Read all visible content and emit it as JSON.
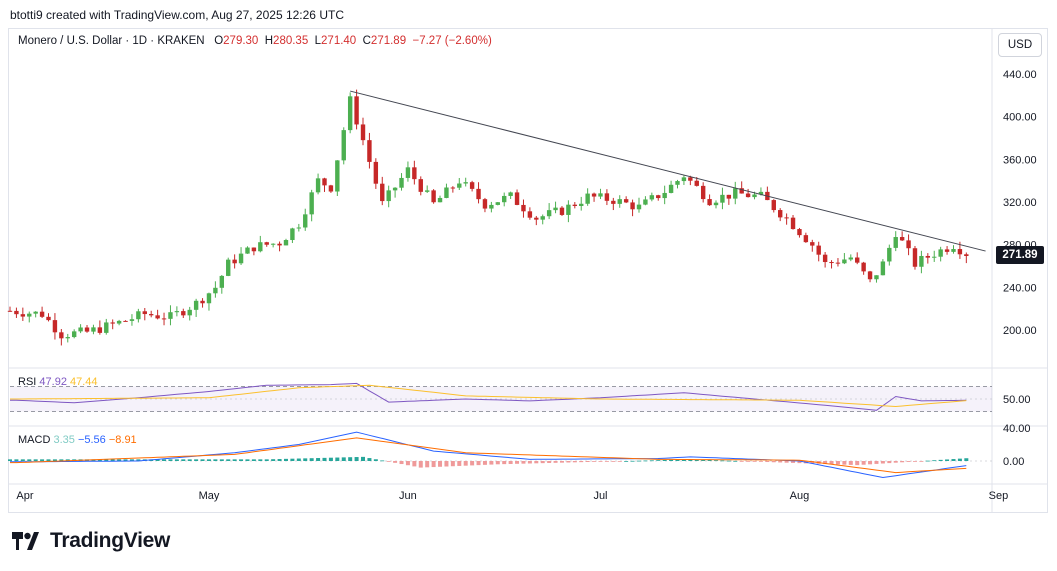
{
  "header": {
    "attribution": "btotti9 created with TradingView.com, Aug 27, 2025 12:26 UTC"
  },
  "legend": {
    "symbol": "Monero / U.S. Dollar · 1D · KRAKEN",
    "o_label": "O",
    "o": "279.30",
    "h_label": "H",
    "h": "280.35",
    "l_label": "L",
    "l": "271.40",
    "c_label": "C",
    "c": "271.89",
    "change": "−7.27 (−2.60%)"
  },
  "currency": "USD",
  "last_price": "271.89",
  "rsi": {
    "label": "RSI",
    "value": "47.92",
    "ma": "47.44"
  },
  "macd": {
    "label": "MACD",
    "hist": "3.35",
    "macd": "−5.56",
    "signal": "−8.91"
  },
  "brand": {
    "name": "TradingView",
    "icon": "tradingview-logo-icon"
  },
  "colors": {
    "up": "#22ab94",
    "up_candle": "#26a69a",
    "green_candle": "#4caf50",
    "down": "#d32f2f",
    "rsi_line": "#7e57c2",
    "rsi_ma": "#fbc02d",
    "macd_line": "#2962ff",
    "signal_line": "#ff6d00"
  },
  "chart_data": [
    {
      "type": "candlestick",
      "title": "Monero / U.S. Dollar · 1D · KRAKEN",
      "x_ticks": [
        "Apr",
        "May",
        "Jun",
        "Jul",
        "Aug",
        "Sep"
      ],
      "y_ticks": [
        "440.00",
        "400.00",
        "360.00",
        "320.00",
        "280.00",
        "240.00",
        "200.00"
      ],
      "ylim": [
        170,
        455
      ],
      "trendline": {
        "from": [
          "2025-05-23",
          424
        ],
        "to": [
          "2025-08-30",
          274
        ]
      },
      "series": [
        {
          "name": "price",
          "points": [
            [
              "2025-03-31",
              218
            ],
            [
              "2025-04-05",
              215
            ],
            [
              "2025-04-08",
              196
            ],
            [
              "2025-04-12",
              198
            ],
            [
              "2025-04-16",
              205
            ],
            [
              "2025-04-21",
              215
            ],
            [
              "2025-04-25",
              212
            ],
            [
              "2025-04-29",
              225
            ],
            [
              "2025-05-02",
              240
            ],
            [
              "2025-05-04",
              262
            ],
            [
              "2025-05-08",
              278
            ],
            [
              "2025-05-12",
              282
            ],
            [
              "2025-05-15",
              300
            ],
            [
              "2025-05-18",
              340
            ],
            [
              "2025-05-20",
              334
            ],
            [
              "2025-05-23",
              415
            ],
            [
              "2025-05-25",
              378
            ],
            [
              "2025-05-28",
              318
            ],
            [
              "2025-06-01",
              350
            ],
            [
              "2025-06-05",
              318
            ],
            [
              "2025-06-09",
              340
            ],
            [
              "2025-06-13",
              318
            ],
            [
              "2025-06-17",
              325
            ],
            [
              "2025-06-21",
              305
            ],
            [
              "2025-06-25",
              312
            ],
            [
              "2025-06-29",
              325
            ],
            [
              "2025-07-03",
              322
            ],
            [
              "2025-07-07",
              315
            ],
            [
              "2025-07-11",
              330
            ],
            [
              "2025-07-14",
              345
            ],
            [
              "2025-07-18",
              322
            ],
            [
              "2025-07-22",
              328
            ],
            [
              "2025-07-26",
              325
            ],
            [
              "2025-07-30",
              305
            ],
            [
              "2025-08-03",
              280
            ],
            [
              "2025-08-05",
              262
            ],
            [
              "2025-08-09",
              268
            ],
            [
              "2025-08-12",
              245
            ],
            [
              "2025-08-14",
              262
            ],
            [
              "2025-08-16",
              292
            ],
            [
              "2025-08-19",
              262
            ],
            [
              "2025-08-22",
              272
            ],
            [
              "2025-08-25",
              280
            ],
            [
              "2025-08-27",
              271.89
            ]
          ]
        }
      ]
    },
    {
      "type": "line",
      "title": "RSI",
      "y_ticks": [
        "50.00"
      ],
      "ylim": [
        20,
        80
      ],
      "bands": [
        70,
        30
      ],
      "series": [
        {
          "name": "RSI",
          "points": [
            [
              "2025-04-01",
              48
            ],
            [
              "2025-04-10",
              44
            ],
            [
              "2025-04-20",
              52
            ],
            [
              "2025-05-01",
              62
            ],
            [
              "2025-05-10",
              72
            ],
            [
              "2025-05-20",
              73
            ],
            [
              "2025-05-24",
              75
            ],
            [
              "2025-05-29",
              45
            ],
            [
              "2025-06-10",
              50
            ],
            [
              "2025-06-20",
              47
            ],
            [
              "2025-07-01",
              52
            ],
            [
              "2025-07-14",
              60
            ],
            [
              "2025-07-25",
              50
            ],
            [
              "2025-08-05",
              40
            ],
            [
              "2025-08-13",
              32
            ],
            [
              "2025-08-16",
              54
            ],
            [
              "2025-08-20",
              47
            ],
            [
              "2025-08-27",
              47.92
            ]
          ]
        },
        {
          "name": "RSI MA",
          "points": [
            [
              "2025-04-01",
              50
            ],
            [
              "2025-05-01",
              52
            ],
            [
              "2025-05-15",
              68
            ],
            [
              "2025-05-26",
              72
            ],
            [
              "2025-06-10",
              55
            ],
            [
              "2025-07-01",
              50
            ],
            [
              "2025-08-01",
              48
            ],
            [
              "2025-08-16",
              38
            ],
            [
              "2025-08-27",
              47.44
            ]
          ]
        }
      ]
    },
    {
      "type": "line",
      "title": "MACD",
      "y_ticks": [
        "40.00",
        "0.00"
      ],
      "ylim": [
        -30,
        55
      ],
      "series": [
        {
          "name": "MACD",
          "points": [
            [
              "2025-04-01",
              -1
            ],
            [
              "2025-04-20",
              0
            ],
            [
              "2025-05-05",
              10
            ],
            [
              "2025-05-15",
              20
            ],
            [
              "2025-05-24",
              35
            ],
            [
              "2025-06-05",
              12
            ],
            [
              "2025-06-20",
              2
            ],
            [
              "2025-07-10",
              3
            ],
            [
              "2025-07-15",
              5
            ],
            [
              "2025-08-01",
              0
            ],
            [
              "2025-08-14",
              -20
            ],
            [
              "2025-08-27",
              -5.56
            ]
          ]
        },
        {
          "name": "Signal",
          "points": [
            [
              "2025-04-01",
              -2
            ],
            [
              "2025-05-05",
              8
            ],
            [
              "2025-05-24",
              28
            ],
            [
              "2025-06-10",
              10
            ],
            [
              "2025-07-10",
              2
            ],
            [
              "2025-08-01",
              1
            ],
            [
              "2025-08-16",
              -14
            ],
            [
              "2025-08-27",
              -8.91
            ]
          ]
        },
        {
          "name": "Histogram",
          "points": [
            [
              "2025-05-10",
              2
            ],
            [
              "2025-05-25",
              5
            ],
            [
              "2025-06-03",
              -8
            ],
            [
              "2025-06-15",
              -4
            ],
            [
              "2025-07-15",
              2
            ],
            [
              "2025-08-10",
              -5
            ],
            [
              "2025-08-27",
              3.35
            ]
          ]
        }
      ]
    }
  ]
}
